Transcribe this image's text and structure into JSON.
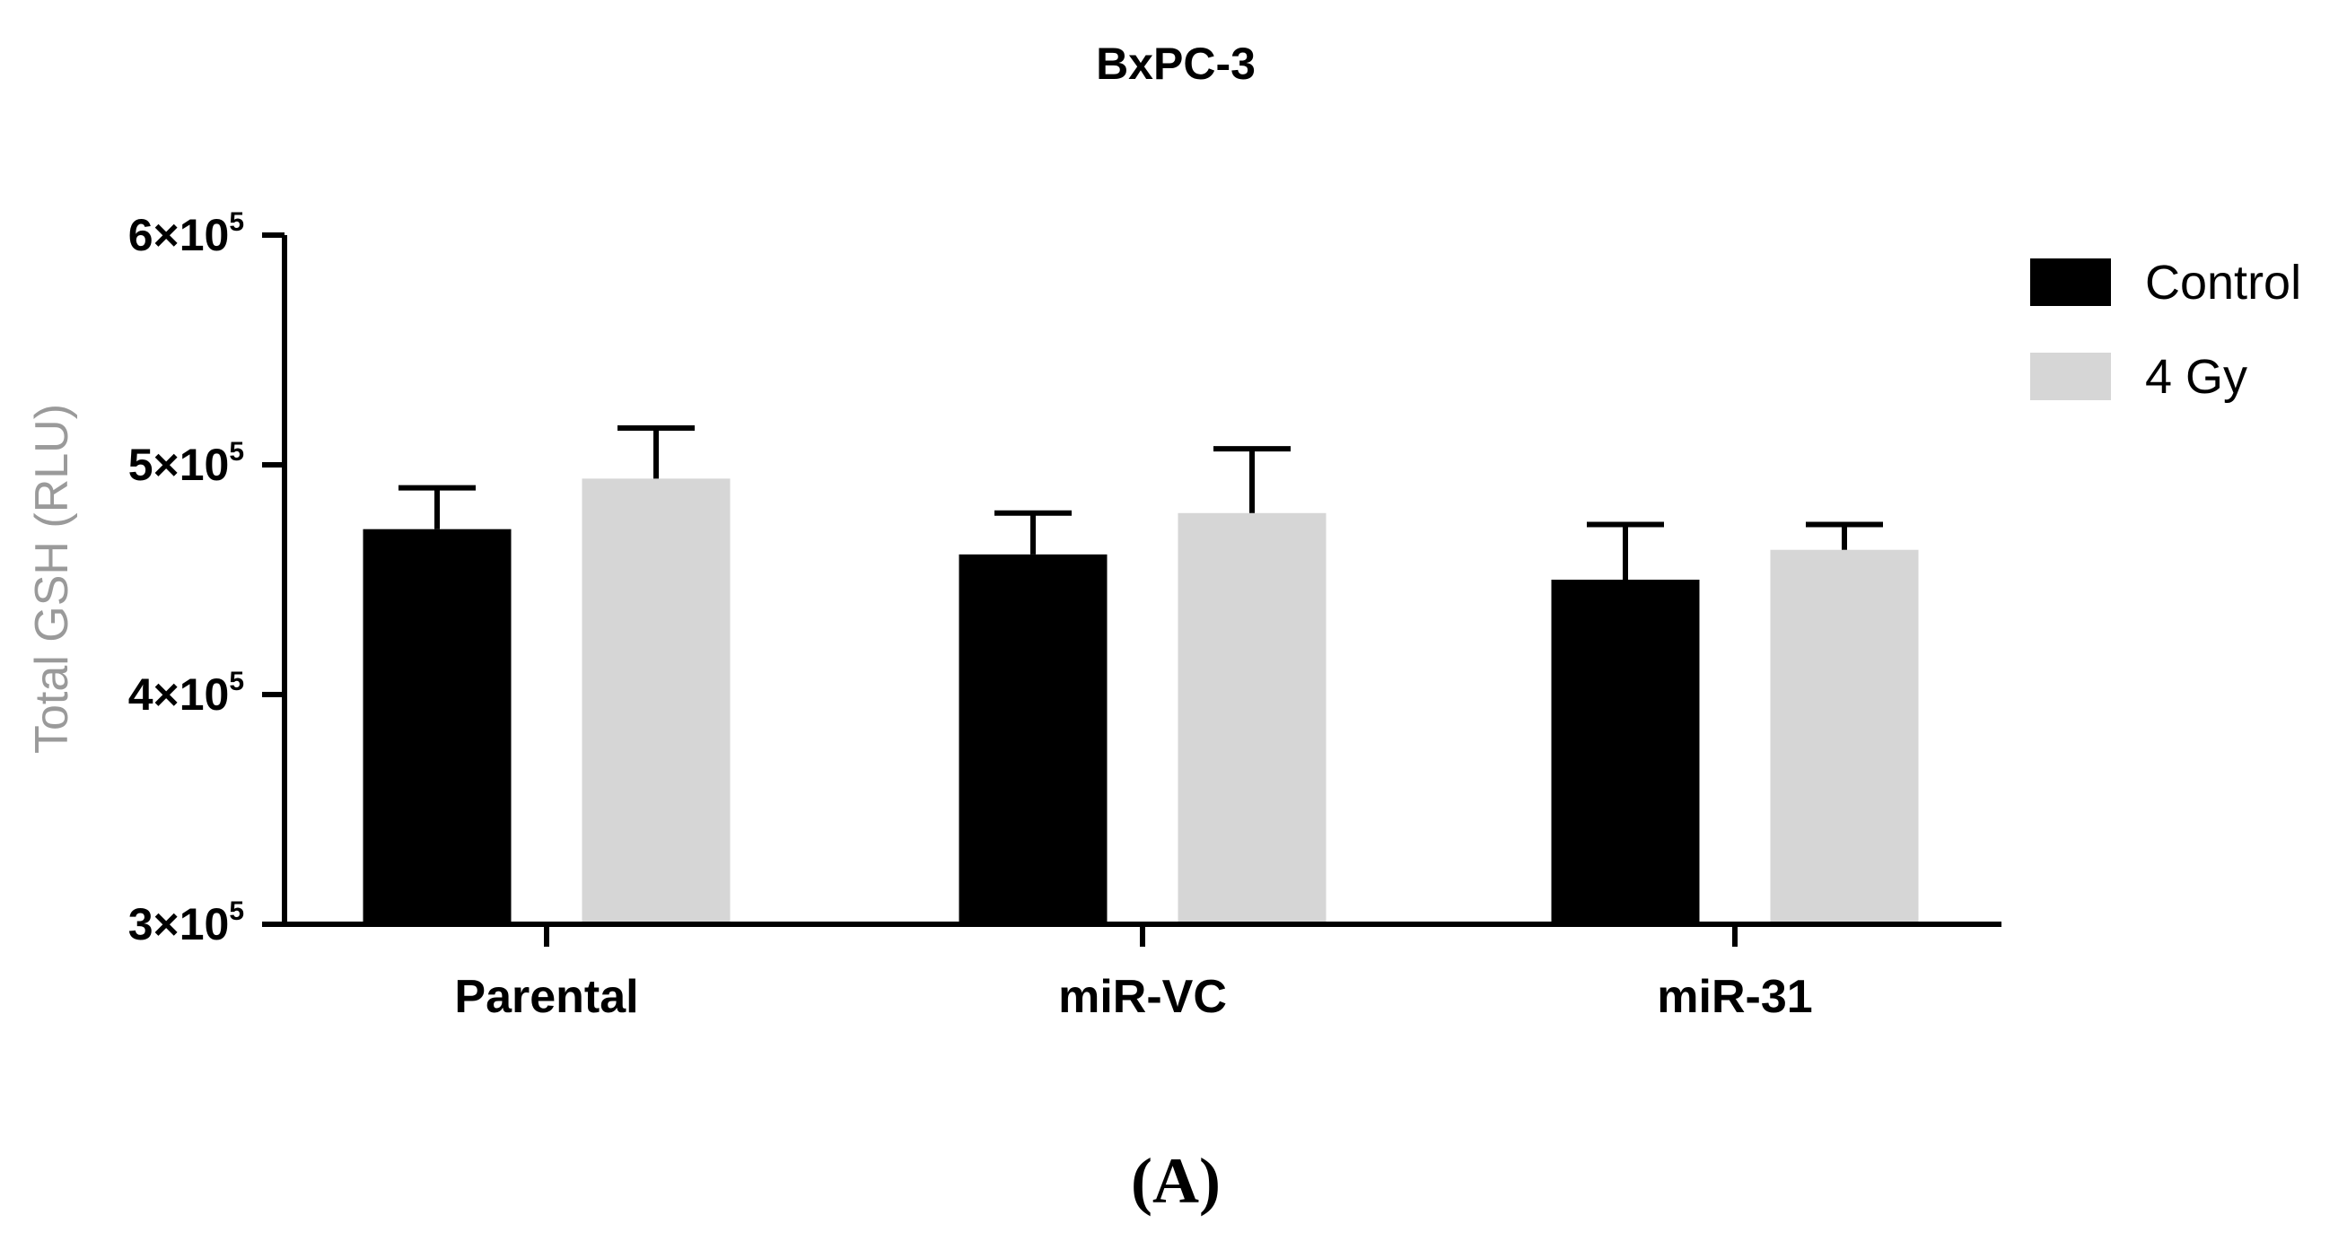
{
  "chart_data": {
    "type": "bar",
    "title": "BxPC-3",
    "ylabel": "Total GSH (RLU)",
    "xlabel": "",
    "ylim": [
      300000,
      600000
    ],
    "y_ticks": [
      {
        "value": 300000,
        "base": "3×10",
        "exp": "5"
      },
      {
        "value": 400000,
        "base": "4×10",
        "exp": "5"
      },
      {
        "value": 500000,
        "base": "5×10",
        "exp": "5"
      },
      {
        "value": 600000,
        "base": "6×10",
        "exp": "5"
      }
    ],
    "categories": [
      "Parental",
      "miR-VC",
      "miR-31"
    ],
    "series": [
      {
        "name": "Control",
        "color": "#000000",
        "values": [
          472000,
          461000,
          450000
        ],
        "errors": [
          18000,
          18000,
          24000
        ]
      },
      {
        "name": "4 Gy",
        "color": "#d6d6d6",
        "values": [
          494000,
          479000,
          463000
        ],
        "errors": [
          22000,
          28000,
          11000
        ]
      }
    ],
    "legend_position": "top-right",
    "grid": false,
    "error_bars": "upper"
  },
  "panel_label": "(A)"
}
